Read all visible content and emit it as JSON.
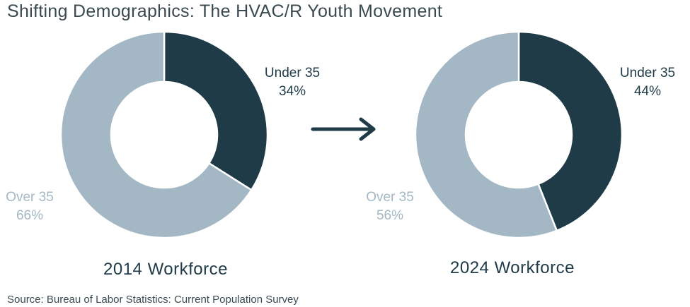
{
  "title": "Shifting Demographics: The HVAC/R Youth Movement",
  "source": "Source: Bureau of Labor Statistics: Current Population Survey",
  "colors": {
    "dark": "#1f3b47",
    "light": "#a3b8c4",
    "text": "#3a4a50"
  },
  "chart_data": [
    {
      "type": "pie",
      "title": "2014 Workforce",
      "slices": [
        {
          "label": "Under 35",
          "value": 34,
          "value_label": "34%",
          "color": "#1f3b47"
        },
        {
          "label": "Over 35",
          "value": 66,
          "value_label": "66%",
          "color": "#a3b8c4"
        }
      ]
    },
    {
      "type": "pie",
      "title": "2024 Workforce",
      "slices": [
        {
          "label": "Under 35",
          "value": 44,
          "value_label": "44%",
          "color": "#1f3b47"
        },
        {
          "label": "Over 35",
          "value": 56,
          "value_label": "56%",
          "color": "#a3b8c4"
        }
      ]
    }
  ],
  "arrow_icon": "arrow-right-icon"
}
